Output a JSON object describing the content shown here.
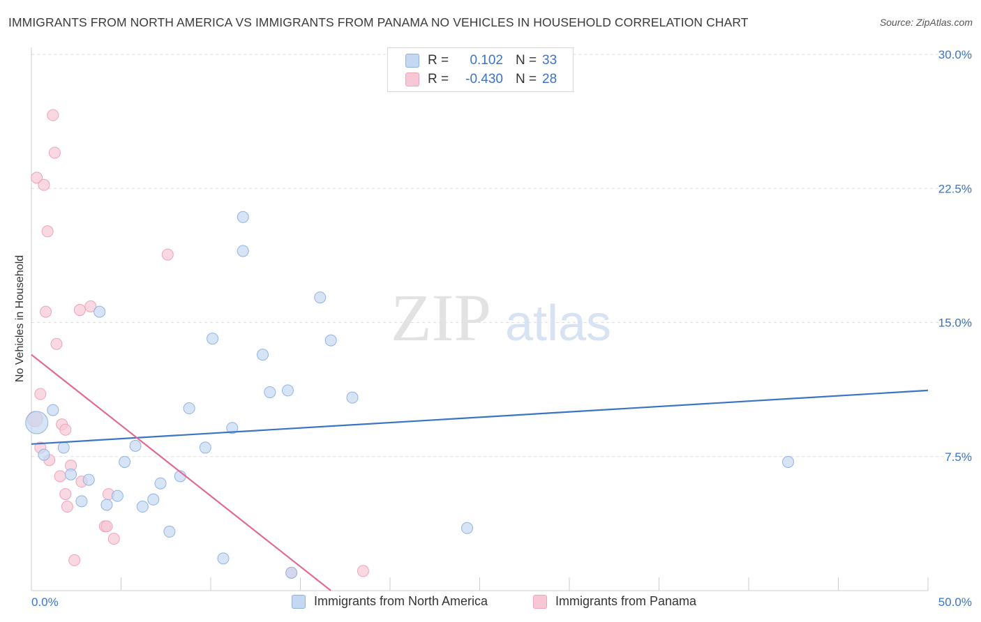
{
  "title": "IMMIGRANTS FROM NORTH AMERICA VS IMMIGRANTS FROM PANAMA NO VEHICLES IN HOUSEHOLD CORRELATION CHART",
  "source": "Source: ZipAtlas.com",
  "watermark": {
    "zip": "ZIP",
    "atlas": "atlas"
  },
  "colors": {
    "blue": "#3a74c4",
    "blue_fill": "#c4d8f1",
    "blue_stroke": "#8fb3e3",
    "pink": "#e06a92",
    "pink_fill": "#f8c7d5",
    "pink_stroke": "#eea3ba",
    "grid": "#dddddd",
    "tick_label": "#3a74c4"
  },
  "legend": {
    "rows": [
      {
        "r_label": "R =",
        "r_value": "0.102",
        "n_label": "N =",
        "n_value": "33"
      },
      {
        "r_label": "R =",
        "r_value": "-0.430",
        "n_label": "N =",
        "n_value": "28"
      }
    ]
  },
  "chart_data": {
    "type": "scatter",
    "title": "IMMIGRANTS FROM NORTH AMERICA VS IMMIGRANTS FROM PANAMA NO VEHICLES IN HOUSEHOLD CORRELATION CHART",
    "xlabel": "",
    "ylabel": "No Vehicles in Household",
    "xlim": [
      0,
      50
    ],
    "ylim": [
      0,
      30
    ],
    "x_tick_labels": [
      "0.0%",
      "50.0%"
    ],
    "y_ticks": [
      7.5,
      15.0,
      22.5,
      30.0
    ],
    "y_tick_labels": [
      "7.5%",
      "15.0%",
      "22.5%",
      "30.0%"
    ],
    "grid": true,
    "series": [
      {
        "name": "Immigrants from North America",
        "color": "#3a74c4",
        "points": [
          [
            0.3,
            9.4
          ],
          [
            1.2,
            10.1
          ],
          [
            0.7,
            7.6
          ],
          [
            1.8,
            8.0
          ],
          [
            2.2,
            6.5
          ],
          [
            2.8,
            5.0
          ],
          [
            3.2,
            6.2
          ],
          [
            3.8,
            15.6
          ],
          [
            4.2,
            4.8
          ],
          [
            4.8,
            5.3
          ],
          [
            5.2,
            7.2
          ],
          [
            5.8,
            8.1
          ],
          [
            6.2,
            4.7
          ],
          [
            6.8,
            5.1
          ],
          [
            7.2,
            6.0
          ],
          [
            7.7,
            3.3
          ],
          [
            8.3,
            6.4
          ],
          [
            8.8,
            10.2
          ],
          [
            9.7,
            8.0
          ],
          [
            10.1,
            14.1
          ],
          [
            10.7,
            1.8
          ],
          [
            11.2,
            9.1
          ],
          [
            11.8,
            20.9
          ],
          [
            11.8,
            19.0
          ],
          [
            12.9,
            13.2
          ],
          [
            13.3,
            11.1
          ],
          [
            14.3,
            11.2
          ],
          [
            14.5,
            1.0
          ],
          [
            16.1,
            16.4
          ],
          [
            16.7,
            14.0
          ],
          [
            17.9,
            10.8
          ],
          [
            24.3,
            3.5
          ],
          [
            42.2,
            7.2
          ]
        ],
        "trend": {
          "x": [
            0,
            50
          ],
          "y": [
            8.2,
            11.2
          ]
        }
      },
      {
        "name": "Immigrants from Panama",
        "color": "#e06a92",
        "points": [
          [
            0.2,
            9.6
          ],
          [
            0.3,
            23.1
          ],
          [
            0.5,
            11.0
          ],
          [
            0.5,
            8.0
          ],
          [
            0.7,
            22.7
          ],
          [
            0.9,
            20.1
          ],
          [
            0.8,
            15.6
          ],
          [
            1.0,
            7.3
          ],
          [
            1.2,
            26.6
          ],
          [
            1.3,
            24.5
          ],
          [
            1.4,
            13.8
          ],
          [
            1.6,
            6.4
          ],
          [
            1.7,
            9.3
          ],
          [
            1.9,
            5.4
          ],
          [
            1.9,
            9.0
          ],
          [
            2.0,
            4.7
          ],
          [
            2.2,
            7.0
          ],
          [
            2.4,
            1.7
          ],
          [
            2.7,
            15.7
          ],
          [
            2.8,
            6.1
          ],
          [
            3.3,
            15.9
          ],
          [
            4.1,
            3.6
          ],
          [
            4.2,
            3.6
          ],
          [
            4.3,
            5.4
          ],
          [
            4.6,
            2.9
          ],
          [
            7.6,
            18.8
          ],
          [
            14.5,
            1.0
          ],
          [
            18.5,
            1.1
          ]
        ],
        "trend": {
          "x": [
            0,
            16.7
          ],
          "y": [
            13.2,
            0
          ]
        }
      }
    ],
    "legend_entries": [
      "Immigrants from North America",
      "Immigrants from Panama"
    ]
  }
}
